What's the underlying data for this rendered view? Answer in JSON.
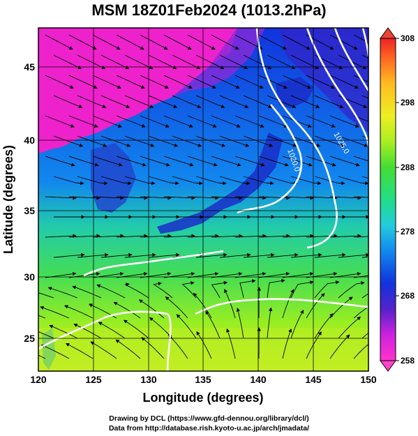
{
  "title": "MSM 18Z01Feb2024 (1013.2hPa)",
  "x_axis": {
    "label": "Longitude (degrees)",
    "ticks": [
      "120",
      "125",
      "130",
      "135",
      "140",
      "145",
      "150"
    ],
    "range": [
      120,
      150
    ]
  },
  "y_axis": {
    "label": "Latitude  (degrees)",
    "ticks": [
      "25",
      "30",
      "35",
      "40",
      "45"
    ],
    "range": [
      22.5,
      47.6
    ]
  },
  "colorbar": {
    "ticks": [
      "258",
      "268",
      "278",
      "288",
      "298",
      "308"
    ],
    "range": [
      258,
      308
    ],
    "colors": [
      "#ff33cc",
      "#cc22dd",
      "#5522cc",
      "#1133dd",
      "#1188ee",
      "#22ccdd",
      "#22dd88",
      "#44dd33",
      "#aaee22",
      "#eeee22",
      "#ffbb22",
      "#ff6622",
      "#ee2222"
    ]
  },
  "contours": [
    {
      "label": "1020.0"
    },
    {
      "label": "1025.0"
    }
  ],
  "footer": {
    "line1": "Drawing by DCL (https://www.gfd-dennou.org/library/dcl/)",
    "line2": "Data from http://database.rish.kyoto-u.ac.jp/arch/jmadata/"
  }
}
